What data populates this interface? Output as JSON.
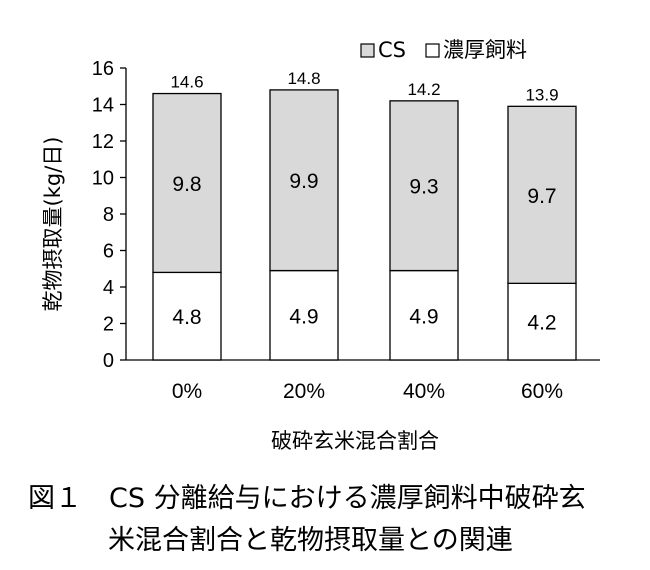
{
  "chart_data": {
    "type": "bar",
    "stacked": true,
    "categories": [
      "0%",
      "20%",
      "40%",
      "60%"
    ],
    "series": [
      {
        "name": "濃厚飼料",
        "values": [
          4.8,
          4.9,
          4.9,
          4.2
        ],
        "color": "#ffffff"
      },
      {
        "name": "CS",
        "values": [
          9.8,
          9.9,
          9.3,
          9.7
        ],
        "color": "#d9d9d9"
      }
    ],
    "totals": [
      "14.6",
      "14.8",
      "14.2",
      "13.9"
    ],
    "legend": {
      "position": "top-right",
      "entries": [
        "CS",
        "濃厚飼料"
      ]
    },
    "xlabel": "破砕玄米混合割合",
    "ylabel": "乾物摂取量(kg/日)",
    "ylim": [
      0,
      16
    ],
    "yticks": [
      0,
      2,
      4,
      6,
      8,
      10,
      12,
      14,
      16
    ],
    "grid": false
  },
  "caption": {
    "line1": "図１　CS 分離給与における濃厚飼料中破砕玄",
    "line2": "米混合割合と乾物摂取量との関連"
  }
}
